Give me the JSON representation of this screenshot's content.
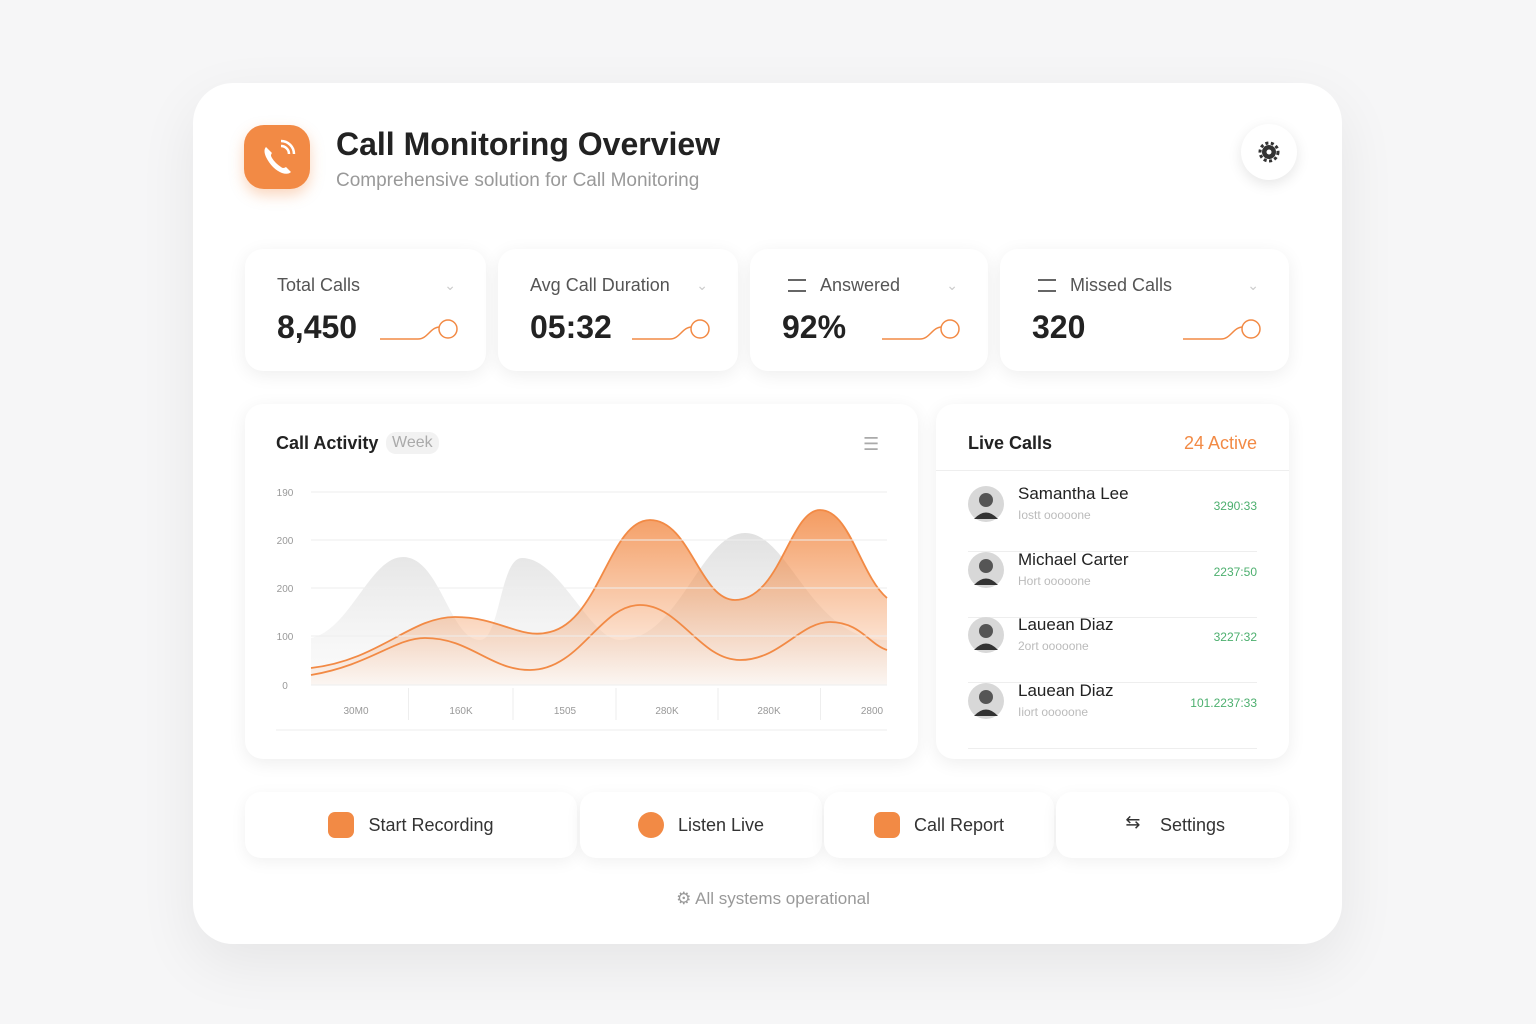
{
  "header": {
    "title": "Call Monitoring Overview",
    "subtitle": "Comprehensive solution for Call Monitoring"
  },
  "stats": [
    {
      "label": "Total Calls",
      "value": "8,450"
    },
    {
      "label": "Avg Call Duration",
      "value": "05:32"
    },
    {
      "label": "Answered",
      "value": "92%"
    },
    {
      "label": "Missed Calls",
      "value": "320"
    }
  ],
  "activity": {
    "title": "Call Activity",
    "period": "Week",
    "y_labels": [
      "190",
      "200",
      "200",
      "100",
      "0"
    ],
    "x_labels": [
      "30M0",
      "160K",
      "1505",
      "280K",
      "280K",
      "2800"
    ]
  },
  "live_calls": {
    "title": "Live Calls",
    "active": "24 Active",
    "calls": [
      {
        "name": "Samantha Lee",
        "sub": "Iostt ooooone",
        "time": "3290:33"
      },
      {
        "name": "Michael Carter",
        "sub": "Hort ooooone",
        "time": "2237:50"
      },
      {
        "name": "Lauean Diaz",
        "sub": "2ort ooooone",
        "time": "3227:32"
      },
      {
        "name": "Lauean Diaz",
        "sub": "Iiort ooooone",
        "time": "101.2237:33"
      }
    ]
  },
  "actions": [
    "Start Recording",
    "Listen Live",
    "Call Report",
    "Settings"
  ],
  "footer": "All systems operational"
}
